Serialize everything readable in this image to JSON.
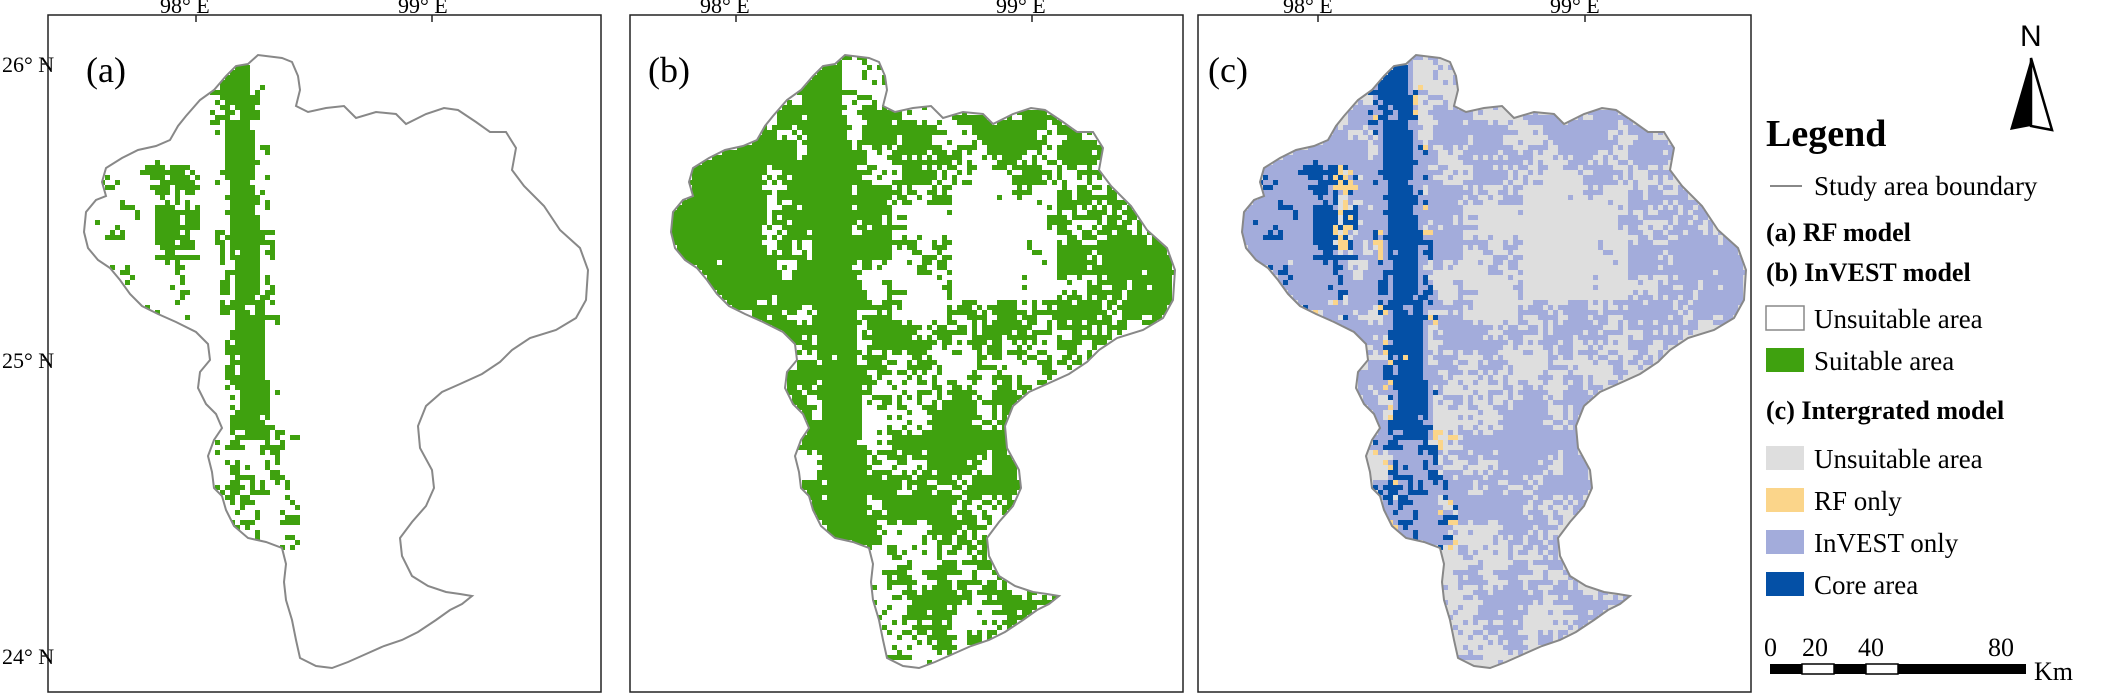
{
  "coordinates": {
    "lon_labels": [
      "98° E",
      "99° E"
    ],
    "lat_labels": [
      "26° N",
      "25° N",
      "24° N"
    ]
  },
  "panels": [
    {
      "id": "a",
      "label": "(a)"
    },
    {
      "id": "b",
      "label": "(b)"
    },
    {
      "id": "c",
      "label": "(c)"
    }
  ],
  "north_arrow": {
    "label": "N"
  },
  "legend": {
    "title": "Legend",
    "boundary": "Study area boundary",
    "heading_rf": "(a) RF model",
    "heading_invest": "(b) InVEST model",
    "binary_items": [
      {
        "label": "Unsuitable area",
        "color": "#ffffff"
      },
      {
        "label": "Suitable area",
        "color": "#3fa10f"
      }
    ],
    "heading_integrated": "(c) Intergrated model",
    "integrated_items": [
      {
        "label": "Unsuitable area",
        "color": "#dedede"
      },
      {
        "label": "RF only",
        "color": "#fbd58a"
      },
      {
        "label": "InVEST only",
        "color": "#a3acdb"
      },
      {
        "label": "Core area",
        "color": "#0450a6"
      }
    ]
  },
  "scale_bar": {
    "labels": [
      "0",
      "20",
      "40",
      "80"
    ],
    "unit": "Km"
  },
  "colors": {
    "boundary": "#888888",
    "suitable": "#3fa10f",
    "unsuitable_c": "#dedede",
    "rf_only": "#fbd58a",
    "invest_only": "#a3acdb",
    "core": "#0450a6"
  }
}
